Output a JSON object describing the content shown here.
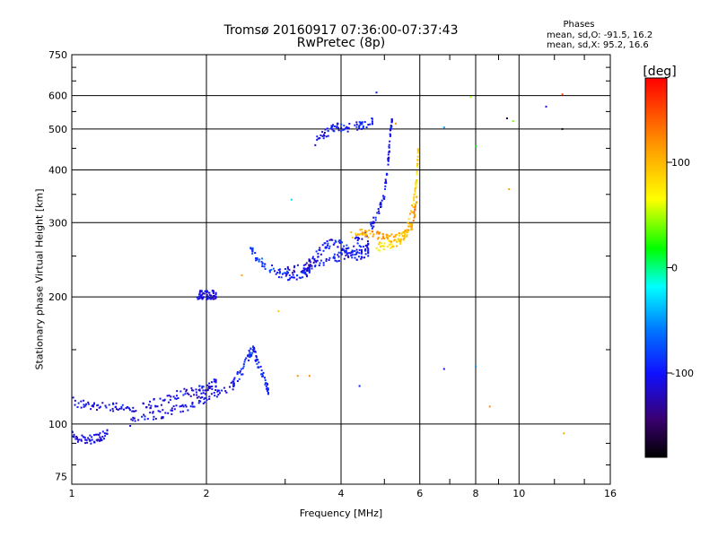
{
  "title": "Tromsø 20160917 07:36:00-07:37:43",
  "subtitle": "RwPretec (8p)",
  "phases": {
    "heading": "Phases",
    "line_o": "mean, sd,O: -91.5, 16.2",
    "line_x": "mean, sd,X:  95.2, 16.6"
  },
  "colorbar": {
    "label": "[deg]",
    "ticks": [
      100,
      0,
      -100
    ],
    "range": [
      -180,
      180
    ]
  },
  "chart_data": {
    "type": "scatter",
    "xlabel": "Frequency [MHz]",
    "ylabel": "Stationary phase Virtual Height [km]",
    "xscale": "log",
    "yscale": "log",
    "xlim": [
      1,
      16
    ],
    "ylim": [
      72,
      750
    ],
    "x_ticks": [
      1,
      2,
      4,
      6,
      8,
      10,
      16
    ],
    "y_ticks": [
      75,
      100,
      200,
      300,
      400,
      500,
      600,
      750
    ],
    "grid": true,
    "colorbar": "phase [deg]",
    "traces": [
      {
        "x": [
          1.0,
          1.05,
          1.1,
          1.15,
          1.2
        ],
        "y": [
          94,
          92,
          92,
          93,
          95
        ],
        "phase": [
          -110,
          -110,
          -105,
          -110,
          -110
        ]
      },
      {
        "x": [
          1.0,
          1.1,
          1.2,
          1.3,
          1.45,
          1.6,
          1.75,
          1.9,
          2.0,
          2.1
        ],
        "y": [
          113,
          111,
          110,
          109,
          110,
          114,
          118,
          120,
          122,
          125
        ],
        "phase": [
          -110,
          -110,
          -108,
          -105,
          -110,
          -110,
          -108,
          -105,
          -110,
          -110
        ]
      },
      {
        "x": [
          1.35,
          1.5,
          1.65,
          1.8,
          1.95,
          2.1,
          2.3
        ],
        "y": [
          101,
          104,
          107,
          110,
          114,
          118,
          124
        ],
        "phase": [
          -110,
          -105,
          -110,
          -110,
          -105,
          -110,
          -110
        ]
      },
      {
        "x": [
          2.3,
          2.4,
          2.5,
          2.55,
          2.6,
          2.7,
          2.75
        ],
        "y": [
          126,
          133,
          147,
          150,
          140,
          127,
          120
        ],
        "phase": [
          -95,
          -95,
          -90,
          -95,
          -95,
          -100,
          -95
        ]
      },
      {
        "x": [
          1.9,
          1.95,
          2.0,
          2.05,
          2.1
        ],
        "y": [
          202,
          202,
          202,
          203,
          202
        ],
        "phase": [
          -110,
          -110,
          -110,
          -108,
          -110
        ]
      },
      {
        "x": [
          2.5,
          2.6,
          2.8,
          3.0,
          3.2,
          3.4
        ],
        "y": [
          265,
          245,
          232,
          225,
          225,
          230
        ],
        "phase": [
          -85,
          -80,
          -90,
          -95,
          -100,
          -100
        ]
      },
      {
        "x": [
          3.3,
          3.5,
          3.7,
          3.9,
          4.1,
          4.3,
          4.6
        ],
        "y": [
          235,
          250,
          265,
          270,
          260,
          250,
          255
        ],
        "phase": [
          -110,
          -105,
          -100,
          -100,
          -95,
          -100,
          -100
        ]
      },
      {
        "x": [
          3.0,
          3.3,
          3.5,
          3.8,
          4.0,
          4.3,
          4.6
        ],
        "y": [
          230,
          233,
          240,
          245,
          250,
          258,
          265
        ],
        "phase": [
          -110,
          -108,
          -105,
          -100,
          -105,
          -108,
          -105
        ]
      },
      {
        "x": [
          4.3,
          4.6,
          4.8,
          5.0,
          5.1,
          5.15,
          5.2
        ],
        "y": [
          272,
          285,
          310,
          350,
          420,
          480,
          530
        ],
        "phase": [
          -110,
          -105,
          -100,
          -105,
          -110,
          -110,
          -108
        ]
      },
      {
        "x": [
          3.5,
          3.7,
          3.9,
          4.1,
          4.4,
          4.7
        ],
        "y": [
          465,
          490,
          505,
          505,
          510,
          520
        ],
        "phase": [
          -110,
          -100,
          -100,
          -105,
          -95,
          -100
        ]
      },
      {
        "x": [
          4.2,
          4.5,
          4.8,
          5.0,
          5.3,
          5.6,
          5.8,
          5.9
        ],
        "y": [
          282,
          284,
          282,
          278,
          275,
          280,
          300,
          340
        ],
        "phase": [
          100,
          110,
          120,
          110,
          95,
          110,
          120,
          110
        ]
      },
      {
        "x": [
          4.8,
          5.1,
          5.4,
          5.6,
          5.8,
          5.9,
          5.95
        ],
        "y": [
          262,
          265,
          272,
          285,
          330,
          380,
          440
        ],
        "phase": [
          80,
          85,
          90,
          95,
          85,
          80,
          90
        ]
      },
      {
        "x": [
          3.2,
          3.4,
          4.4,
          6.8,
          8.0,
          8.6,
          9.5,
          11.5,
          12.5,
          12.5
        ],
        "y": [
          130,
          130,
          123,
          135,
          137,
          110,
          360,
          565,
          604,
          500
        ],
        "phase": [
          120,
          125,
          -95,
          -110,
          -50,
          120,
          110,
          -110,
          150,
          -170
        ]
      },
      {
        "x": [
          2.4,
          2.9,
          3.1,
          4.8,
          5.3,
          6.8,
          7.8,
          8.0,
          9.4,
          9.7,
          12.6
        ],
        "y": [
          225,
          185,
          340,
          610,
          515,
          504,
          595,
          455,
          530,
          522,
          95
        ],
        "phase": [
          110,
          90,
          -30,
          -100,
          120,
          -50,
          50,
          20,
          -170,
          40,
          110
        ]
      }
    ]
  }
}
